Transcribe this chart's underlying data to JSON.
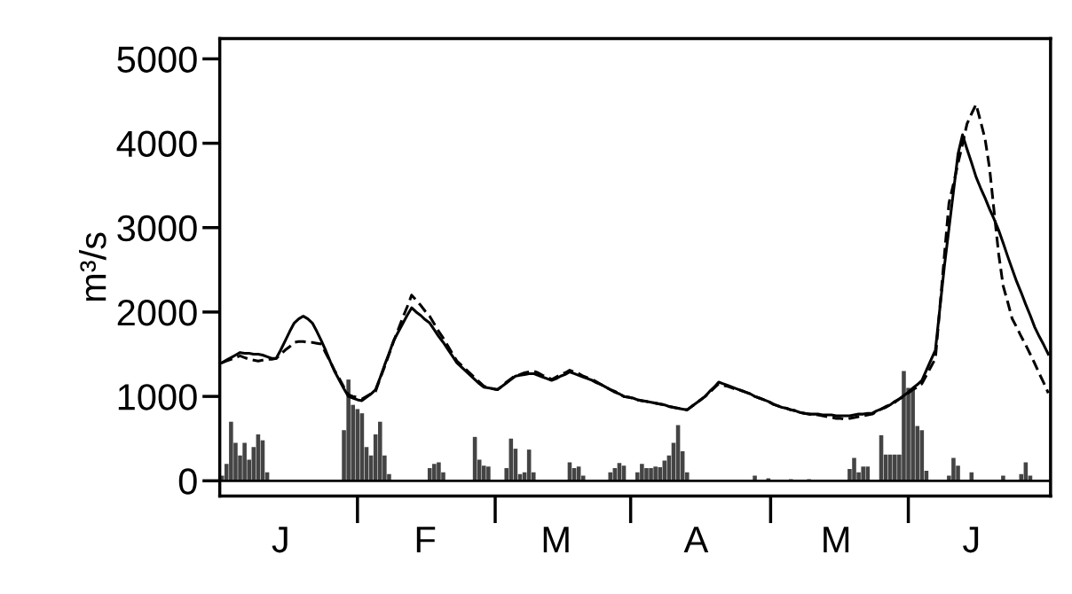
{
  "chart_data": {
    "type": "line",
    "ylabel": "m³/s",
    "ylim": [
      -180,
      5240
    ],
    "yticks": [
      0,
      1000,
      2000,
      3000,
      4000,
      5000
    ],
    "grid": false,
    "ref_lines": [
      {
        "axis": "y",
        "value": 0,
        "color": "#000000"
      }
    ],
    "categories": [
      null,
      null,
      null,
      null,
      null,
      null,
      null,
      null,
      null,
      null,
      null,
      null,
      null,
      "J",
      null,
      null,
      null,
      null,
      null,
      null,
      null,
      null,
      null,
      null,
      null,
      null,
      null,
      null,
      null,
      null,
      null,
      null,
      null,
      null,
      null,
      null,
      null,
      null,
      null,
      null,
      null,
      null,
      null,
      null,
      null,
      "F",
      null,
      null,
      null,
      null,
      null,
      null,
      null,
      null,
      null,
      null,
      null,
      null,
      null,
      null,
      null,
      null,
      null,
      null,
      null,
      null,
      null,
      null,
      null,
      null,
      null,
      null,
      null,
      null,
      "M",
      null,
      null,
      null,
      null,
      null,
      null,
      null,
      null,
      null,
      null,
      null,
      null,
      null,
      null,
      null,
      null,
      null,
      null,
      null,
      null,
      null,
      null,
      null,
      null,
      null,
      null,
      null,
      null,
      null,
      null,
      "A",
      null,
      null,
      null,
      null,
      null,
      null,
      null,
      null,
      null,
      null,
      null,
      null,
      null,
      null,
      null,
      null,
      null,
      null,
      null,
      null,
      null,
      null,
      null,
      null,
      null,
      null,
      null,
      null,
      null,
      null,
      "M",
      null,
      null,
      null,
      null,
      null,
      null,
      null,
      null,
      null,
      null,
      null,
      null,
      null,
      null,
      null,
      null,
      null,
      null,
      null,
      null,
      null,
      null,
      null,
      null,
      null,
      null,
      null,
      null,
      null,
      "J",
      null,
      null,
      null,
      null,
      null,
      null,
      null,
      null,
      null,
      null,
      null,
      null,
      null,
      null,
      null,
      null,
      null
    ],
    "series": [
      {
        "type": "bar",
        "color": "#444444",
        "values": [
          60,
          200,
          700,
          450,
          300,
          450,
          250,
          400,
          550,
          480,
          100,
          null,
          null,
          null,
          null,
          null,
          null,
          null,
          null,
          null,
          null,
          null,
          null,
          null,
          null,
          null,
          null,
          600,
          1200,
          900,
          850,
          800,
          400,
          300,
          550,
          700,
          300,
          80,
          null,
          null,
          null,
          null,
          null,
          null,
          null,
          null,
          150,
          200,
          220,
          100,
          null,
          null,
          null,
          null,
          null,
          null,
          520,
          250,
          180,
          170,
          null,
          null,
          null,
          150,
          500,
          380,
          80,
          100,
          370,
          100,
          null,
          null,
          null,
          null,
          null,
          null,
          null,
          220,
          150,
          170,
          60,
          null,
          null,
          null,
          null,
          null,
          100,
          150,
          210,
          180,
          null,
          null,
          100,
          200,
          150,
          150,
          170,
          160,
          240,
          300,
          450,
          660,
          350,
          100,
          null,
          null,
          null,
          null,
          null,
          null,
          null,
          null,
          null,
          null,
          null,
          null,
          null,
          null,
          60,
          null,
          null,
          30,
          null,
          null,
          null,
          null,
          20,
          null,
          null,
          null,
          20,
          null,
          null,
          null,
          null,
          null,
          null,
          null,
          null,
          140,
          270,
          100,
          170,
          170,
          null,
          null,
          540,
          310,
          310,
          310,
          310,
          1300,
          1100,
          1080,
          650,
          600,
          120,
          null,
          null,
          null,
          null,
          60,
          270,
          180,
          null,
          null,
          100,
          null,
          null,
          null,
          null,
          null,
          null,
          60,
          null,
          null,
          null,
          80,
          220,
          60,
          null,
          null,
          null,
          null
        ]
      },
      {
        "color": "#000000",
        "line_style": "solid",
        "values": [
          1400,
          1430,
          1460,
          1490,
          1520,
          1510,
          1510,
          1500,
          1500,
          1490,
          1470,
          1450,
          1450,
          1550,
          1660,
          1770,
          1870,
          1920,
          1950,
          1920,
          1870,
          1770,
          1660,
          1540,
          1410,
          1290,
          1190,
          1090,
          1000,
          980,
          960,
          950,
          990,
          1030,
          1080,
          1220,
          1370,
          1510,
          1660,
          1760,
          1860,
          1960,
          2050,
          2000,
          1960,
          1910,
          1870,
          1790,
          1710,
          1640,
          1560,
          1480,
          1400,
          1350,
          1300,
          1250,
          1200,
          1150,
          1110,
          1100,
          1090,
          1080,
          1120,
          1160,
          1200,
          1240,
          1250,
          1260,
          1270,
          1270,
          1250,
          1230,
          1210,
          1190,
          1210,
          1240,
          1260,
          1290,
          1270,
          1250,
          1230,
          1210,
          1190,
          1160,
          1140,
          1110,
          1080,
          1050,
          1030,
          1000,
          990,
          980,
          960,
          950,
          940,
          930,
          920,
          910,
          900,
          880,
          870,
          860,
          850,
          840,
          880,
          920,
          960,
          1000,
          1060,
          1110,
          1170,
          1150,
          1130,
          1110,
          1090,
          1070,
          1050,
          1030,
          1000,
          980,
          960,
          940,
          910,
          890,
          870,
          860,
          840,
          830,
          810,
          800,
          790,
          790,
          790,
          780,
          780,
          780,
          770,
          770,
          770,
          770,
          780,
          790,
          790,
          800,
          800,
          830,
          850,
          880,
          900,
          940,
          970,
          1010,
          1050,
          1100,
          1140,
          1190,
          1310,
          1430,
          1550,
          2050,
          2550,
          2990,
          3430,
          3870,
          4100,
          3930,
          3770,
          3600,
          3470,
          3350,
          3220,
          3100,
          2970,
          2820,
          2660,
          2510,
          2360,
          2230,
          2090,
          1960,
          1820,
          1710,
          1610,
          1500
        ]
      },
      {
        "color": "#000000",
        "line_style": "dashed",
        "values": [
          1400,
          1420,
          1440,
          1460,
          1480,
          1460,
          1440,
          1430,
          1420,
          1430,
          1440,
          1440,
          1450,
          1500,
          1550,
          1590,
          1640,
          1650,
          1650,
          1640,
          1640,
          1630,
          1620,
          1510,
          1410,
          1300,
          1210,
          1110,
          1020,
          1000,
          990,
          970,
          1000,
          1030,
          1060,
          1210,
          1350,
          1500,
          1650,
          1790,
          1930,
          2060,
          2200,
          2140,
          2080,
          2010,
          1950,
          1860,
          1770,
          1690,
          1600,
          1510,
          1420,
          1370,
          1320,
          1270,
          1220,
          1170,
          1120,
          1110,
          1090,
          1080,
          1120,
          1170,
          1210,
          1250,
          1260,
          1280,
          1290,
          1300,
          1280,
          1250,
          1230,
          1200,
          1230,
          1260,
          1280,
          1310,
          1290,
          1270,
          1240,
          1220,
          1200,
          1170,
          1140,
          1110,
          1080,
          1060,
          1030,
          1000,
          990,
          980,
          960,
          950,
          940,
          930,
          920,
          910,
          900,
          880,
          870,
          860,
          850,
          840,
          880,
          920,
          960,
          1000,
          1050,
          1100,
          1150,
          1130,
          1120,
          1100,
          1080,
          1070,
          1050,
          1030,
          1000,
          980,
          960,
          940,
          910,
          890,
          870,
          860,
          840,
          830,
          810,
          800,
          790,
          780,
          780,
          770,
          760,
          750,
          740,
          740,
          730,
          740,
          750,
          760,
          770,
          780,
          790,
          820,
          850,
          870,
          900,
          930,
          970,
          1000,
          1040,
          1080,
          1110,
          1150,
          1250,
          1350,
          1450,
          2060,
          2680,
          3290,
          3520,
          3760,
          3990,
          4230,
          4350,
          4460,
          4260,
          4050,
          3700,
          3190,
          2690,
          2310,
          2120,
          1920,
          1820,
          1710,
          1610,
          1500,
          1390,
          1270,
          1160,
          1040
        ]
      }
    ]
  }
}
